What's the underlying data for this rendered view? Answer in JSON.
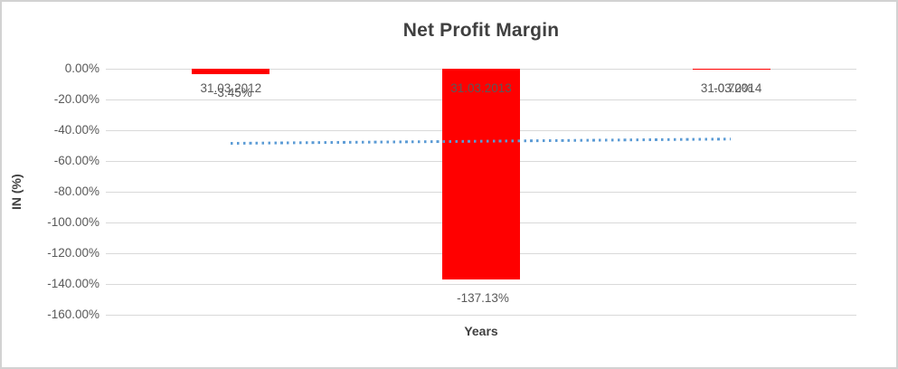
{
  "chart_data": {
    "type": "bar",
    "title": "Net Profit Margin",
    "xlabel": "Years",
    "ylabel": "IN (%)",
    "categories": [
      "31.03.2012",
      "31.03.2013",
      "31.03.2014"
    ],
    "series": [
      {
        "name": "Net Profit Margin",
        "values": [
          -3.45,
          -137.13,
          -0.7
        ],
        "color": "#ff0000"
      }
    ],
    "data_labels": [
      "-3.45%",
      "-137.13%",
      "-0.70%"
    ],
    "yticks": [
      "0.00%",
      "-20.00%",
      "-40.00%",
      "-60.00%",
      "-80.00%",
      "-100.00%",
      "-120.00%",
      "-140.00%",
      "-160.00%"
    ],
    "ylim": [
      -160,
      0
    ],
    "ytick_step": 20,
    "grid": true,
    "legend": false,
    "trendline": {
      "type": "linear",
      "style": "dotted",
      "color": "#5b9bd5",
      "start_value": -48.5,
      "end_value": -45.7
    }
  },
  "colors": {
    "bar": "#ff0000",
    "trend": "#5b9bd5",
    "grid": "#d9d9d9",
    "axis_text": "#595959",
    "title_text": "#404040",
    "frame_border": "#d2d2d2"
  }
}
